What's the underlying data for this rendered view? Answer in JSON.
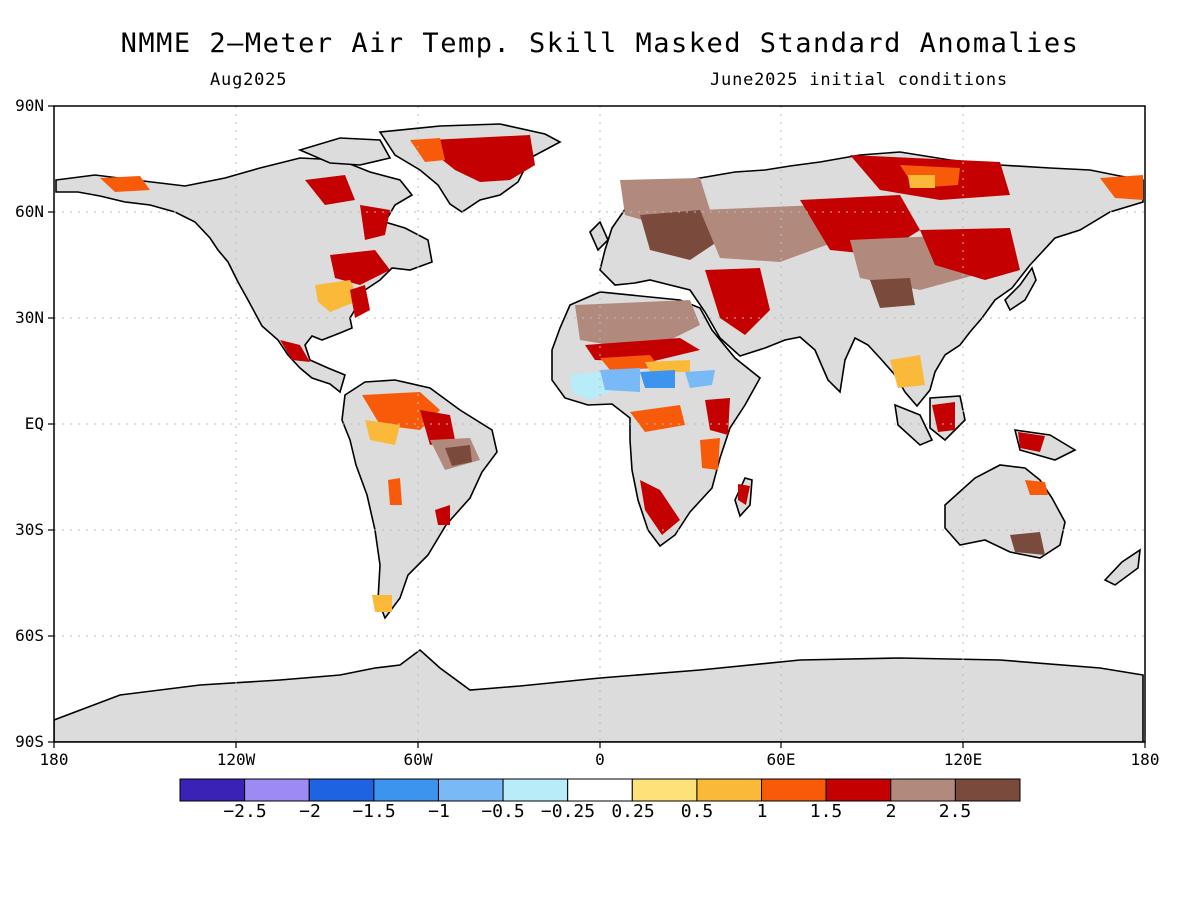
{
  "title": "NMME 2—Meter Air Temp. Skill Masked Standard Anomalies",
  "subtitle_left": "Aug2025",
  "subtitle_right": "June2025 initial conditions",
  "lat_labels": [
    "90N",
    "60N",
    "30N",
    "EQ",
    "30S",
    "60S",
    "90S"
  ],
  "lon_labels": [
    "180",
    "120W",
    "60W",
    "0",
    "60E",
    "120E",
    "180"
  ],
  "colorbar": {
    "colors": [
      "#3b22b6",
      "#9d8af2",
      "#1e63e2",
      "#3c94ee",
      "#78b9f6",
      "#b8ecf8",
      "#ffffff",
      "#fde27a",
      "#fbb93a",
      "#f75b0a",
      "#c40000",
      "#b18a7d",
      "#7a4b3d"
    ],
    "tick_labels": [
      "−2.5",
      "−2",
      "−1.5",
      "−1",
      "−0.5",
      "−0.25",
      "0.25",
      "0.5",
      "1",
      "1.5",
      "2",
      "2.5"
    ]
  },
  "colors": {
    "land_masked": "#dcdcdc",
    "grid": "#bcbcbc"
  }
}
